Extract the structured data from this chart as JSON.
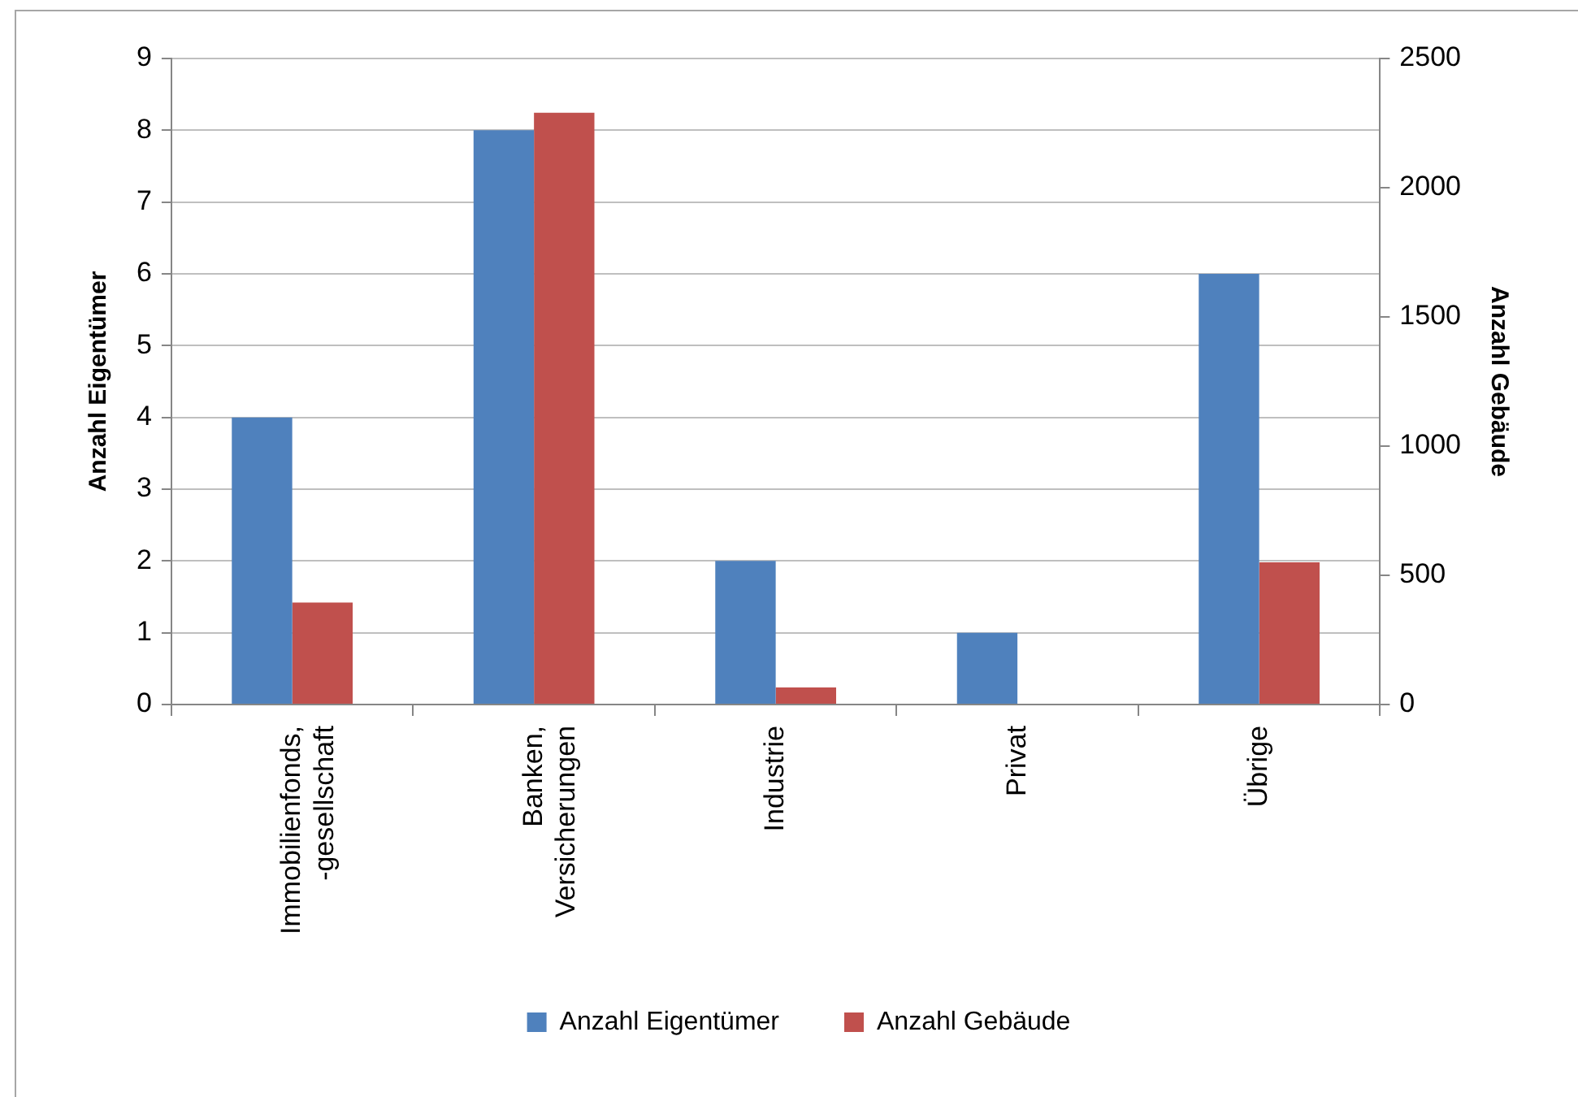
{
  "chart_data": {
    "type": "bar",
    "categories": [
      "Immobilienfonds, -gesellschaft",
      "Banken, Versicherungen",
      "Industrie",
      "Privat",
      "Übrige"
    ],
    "series": [
      {
        "name": "Anzahl Eigentümer",
        "color": "#4f81bd",
        "values": [
          4,
          8,
          2,
          1,
          6
        ]
      },
      {
        "name": "Anzahl Gebäude",
        "color": "#c0504d",
        "axis": "y2",
        "values": [
          395,
          2290,
          66,
          0,
          550
        ]
      }
    ],
    "ylabel": "Anzahl Eigentümer",
    "y2label": "Anzahl Gebäude",
    "ylim": [
      0,
      9
    ],
    "yticks": [
      0,
      1,
      2,
      3,
      4,
      5,
      6,
      7,
      8,
      9
    ],
    "y2lim": [
      0,
      2500
    ],
    "y2ticks": [
      0,
      500,
      1000,
      1500,
      2000,
      2500
    ],
    "grid": "y",
    "legend": "bottom"
  }
}
